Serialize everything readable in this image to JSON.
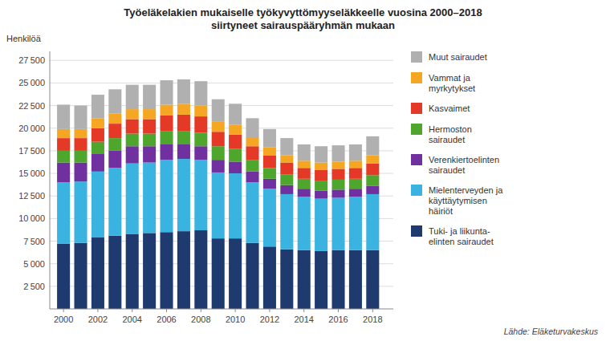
{
  "chart_data": {
    "type": "bar",
    "stacked": true,
    "grid": true,
    "legend": "right",
    "title": "Työeläkelakien mukaiselle työkyvyttömyyseläkkeelle vuosina 2000–2018\nsiirtyneet sairauspääryhmän mukaan",
    "ylabel": "Henkilöä",
    "source": "Lähde: Eläketurvakeskus",
    "x": [
      2000,
      2001,
      2002,
      2003,
      2004,
      2005,
      2006,
      2007,
      2008,
      2009,
      2010,
      2011,
      2012,
      2013,
      2014,
      2015,
      2016,
      2017,
      2018
    ],
    "xlim": [
      1999.2,
      2019.2
    ],
    "xticks": [
      2000,
      2002,
      2004,
      2006,
      2008,
      2010,
      2012,
      2014,
      2016,
      2018
    ],
    "ylim": [
      0,
      28500
    ],
    "yticks": [
      {
        "value": 2500,
        "label": "2 500"
      },
      {
        "value": 5000,
        "label": "5 000"
      },
      {
        "value": 7500,
        "label": "7 500"
      },
      {
        "value": 10000,
        "label": "10 000"
      },
      {
        "value": 12500,
        "label": "12 500"
      },
      {
        "value": 15000,
        "label": "15 000"
      },
      {
        "value": 17500,
        "label": "17 500"
      },
      {
        "value": 20000,
        "label": "20 000"
      },
      {
        "value": 22500,
        "label": "22 500"
      },
      {
        "value": 25000,
        "label": "25 000"
      },
      {
        "value": 27500,
        "label": "27 500"
      }
    ],
    "series": [
      {
        "name": "Tuki- ja liikunta-\nelinten sairaudet",
        "color": "#1f3a6e",
        "values": [
          7200,
          7300,
          7900,
          8100,
          8300,
          8400,
          8500,
          8600,
          8700,
          7800,
          7800,
          7300,
          6900,
          6600,
          6500,
          6400,
          6500,
          6500,
          6500
        ]
      },
      {
        "name": "Mielenterveyden ja\nkäyttäytymisen\nhäiriöt",
        "color": "#3ab3e0",
        "values": [
          6800,
          6800,
          7300,
          7500,
          7800,
          7800,
          8000,
          8000,
          7800,
          7300,
          7200,
          6700,
          6400,
          6100,
          5900,
          5800,
          5800,
          5900,
          6200
        ]
      },
      {
        "name": "Verenkiertoelinten\nsairaudet",
        "color": "#7030a0",
        "values": [
          2200,
          2100,
          2000,
          1900,
          1900,
          1800,
          1700,
          1600,
          1500,
          1400,
          1300,
          1200,
          1100,
          1000,
          900,
          900,
          900,
          900,
          900
        ]
      },
      {
        "name": "Hermoston\nsairaudet",
        "color": "#4ea72c",
        "values": [
          1300,
          1300,
          1300,
          1400,
          1400,
          1400,
          1500,
          1500,
          1500,
          1500,
          1400,
          1300,
          1200,
          1200,
          1100,
          1100,
          1100,
          1100,
          1200
        ]
      },
      {
        "name": "Kasvaimet",
        "color": "#e53928",
        "values": [
          1400,
          1400,
          1500,
          1600,
          1600,
          1600,
          1700,
          1800,
          1800,
          1600,
          1600,
          1500,
          1400,
          1300,
          1200,
          1200,
          1200,
          1200,
          1300
        ]
      },
      {
        "name": "Vammat ja\nmyrkytykset",
        "color": "#f5a623",
        "values": [
          1000,
          1000,
          1100,
          1100,
          1100,
          1100,
          1200,
          1200,
          1200,
          1100,
          1100,
          1000,
          900,
          800,
          800,
          800,
          800,
          800,
          900
        ]
      },
      {
        "name": "Muut sairaudet",
        "color": "#b0b0b0",
        "values": [
          2700,
          2600,
          2600,
          2700,
          2700,
          2700,
          2700,
          2700,
          2700,
          2500,
          2300,
          2100,
          2000,
          1900,
          1800,
          1800,
          1800,
          1800,
          2100
        ]
      }
    ]
  }
}
